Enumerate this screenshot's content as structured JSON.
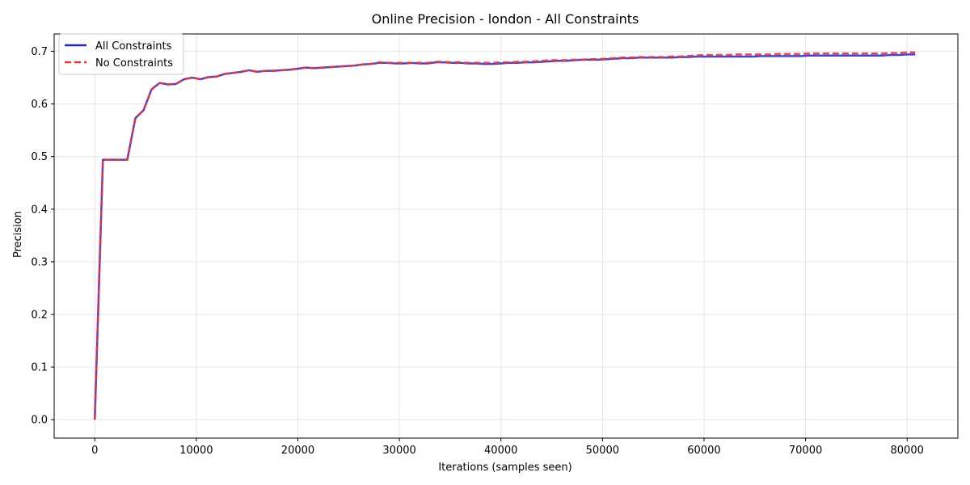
{
  "chart_data": {
    "type": "line",
    "title": "Online Precision - london - All Constraints",
    "xlabel": "Iterations (samples seen)",
    "ylabel": "Precision",
    "xlim": [
      -4000,
      85000
    ],
    "ylim": [
      -0.035,
      0.733
    ],
    "xticks": [
      0,
      10000,
      20000,
      30000,
      40000,
      50000,
      60000,
      70000,
      80000
    ],
    "yticks": [
      0.0,
      0.1,
      0.2,
      0.3,
      0.4,
      0.5,
      0.6,
      0.7
    ],
    "grid": true,
    "legend_position": "top-left",
    "series": [
      {
        "name": "All Constraints",
        "color": "#2222dd",
        "style": "solid",
        "x": [
          0,
          800,
          1600,
          2400,
          3200,
          4000,
          4800,
          5600,
          6400,
          7200,
          8000,
          8800,
          9600,
          10400,
          11200,
          12000,
          12800,
          13600,
          14400,
          15200,
          16000,
          16800,
          17600,
          18400,
          19200,
          20000,
          20800,
          21600,
          22400,
          23200,
          24000,
          24800,
          25600,
          26400,
          27200,
          28000,
          28800,
          29600,
          30400,
          31200,
          32000,
          32800,
          33600,
          34400,
          35200,
          36000,
          36800,
          37600,
          38400,
          39200,
          40000,
          40800,
          41600,
          42400,
          43200,
          44000,
          44800,
          45600,
          46400,
          47200,
          48000,
          48800,
          49600,
          50400,
          51200,
          52000,
          52800,
          53600,
          54400,
          55200,
          56000,
          56800,
          57600,
          58400,
          59200,
          60000,
          60800,
          61600,
          62400,
          63200,
          64000,
          64800,
          65600,
          66400,
          67200,
          68000,
          68800,
          69600,
          70400,
          71200,
          72000,
          72800,
          73600,
          74400,
          75200,
          76000,
          76800,
          77600,
          78400,
          79200,
          80000,
          80800
        ],
        "values": [
          0.0,
          0.494,
          0.494,
          0.494,
          0.494,
          0.573,
          0.588,
          0.628,
          0.64,
          0.637,
          0.638,
          0.647,
          0.65,
          0.647,
          0.651,
          0.652,
          0.657,
          0.659,
          0.661,
          0.664,
          0.661,
          0.663,
          0.663,
          0.664,
          0.665,
          0.667,
          0.669,
          0.668,
          0.669,
          0.67,
          0.671,
          0.672,
          0.673,
          0.675,
          0.676,
          0.678,
          0.678,
          0.677,
          0.677,
          0.678,
          0.677,
          0.677,
          0.679,
          0.679,
          0.678,
          0.678,
          0.677,
          0.677,
          0.676,
          0.676,
          0.677,
          0.678,
          0.678,
          0.679,
          0.679,
          0.68,
          0.681,
          0.682,
          0.682,
          0.683,
          0.684,
          0.684,
          0.684,
          0.685,
          0.686,
          0.687,
          0.687,
          0.688,
          0.688,
          0.688,
          0.688,
          0.688,
          0.689,
          0.689,
          0.69,
          0.69,
          0.69,
          0.69,
          0.69,
          0.69,
          0.69,
          0.69,
          0.691,
          0.691,
          0.691,
          0.691,
          0.691,
          0.691,
          0.692,
          0.692,
          0.692,
          0.692,
          0.692,
          0.692,
          0.692,
          0.692,
          0.692,
          0.692,
          0.693,
          0.693,
          0.694,
          0.694
        ]
      },
      {
        "name": "No Constraints",
        "color": "#ee3333",
        "style": "dashed",
        "x": [
          0,
          800,
          1600,
          2400,
          3200,
          4000,
          4800,
          5600,
          6400,
          7200,
          8000,
          8800,
          9600,
          10400,
          11200,
          12000,
          12800,
          13600,
          14400,
          15200,
          16000,
          16800,
          17600,
          18400,
          19200,
          20000,
          20800,
          21600,
          22400,
          23200,
          24000,
          24800,
          25600,
          26400,
          27200,
          28000,
          28800,
          29600,
          30400,
          31200,
          32000,
          32800,
          33600,
          34400,
          35200,
          36000,
          36800,
          37600,
          38400,
          39200,
          40000,
          40800,
          41600,
          42400,
          43200,
          44000,
          44800,
          45600,
          46400,
          47200,
          48000,
          48800,
          49600,
          50400,
          51200,
          52000,
          52800,
          53600,
          54400,
          55200,
          56000,
          56800,
          57600,
          58400,
          59200,
          60000,
          60800,
          61600,
          62400,
          63200,
          64000,
          64800,
          65600,
          66400,
          67200,
          68000,
          68800,
          69600,
          70400,
          71200,
          72000,
          72800,
          73600,
          74400,
          75200,
          76000,
          76800,
          77600,
          78400,
          79200,
          80000,
          80800
        ],
        "values": [
          0.0,
          0.494,
          0.494,
          0.494,
          0.494,
          0.573,
          0.588,
          0.628,
          0.64,
          0.637,
          0.638,
          0.647,
          0.65,
          0.647,
          0.651,
          0.652,
          0.657,
          0.659,
          0.661,
          0.664,
          0.661,
          0.663,
          0.663,
          0.664,
          0.665,
          0.667,
          0.669,
          0.668,
          0.669,
          0.67,
          0.671,
          0.672,
          0.673,
          0.675,
          0.676,
          0.679,
          0.678,
          0.678,
          0.678,
          0.678,
          0.678,
          0.678,
          0.68,
          0.68,
          0.679,
          0.679,
          0.678,
          0.678,
          0.678,
          0.678,
          0.679,
          0.679,
          0.68,
          0.68,
          0.681,
          0.682,
          0.683,
          0.683,
          0.683,
          0.684,
          0.684,
          0.685,
          0.685,
          0.686,
          0.687,
          0.688,
          0.688,
          0.689,
          0.689,
          0.689,
          0.689,
          0.69,
          0.69,
          0.691,
          0.692,
          0.693,
          0.693,
          0.693,
          0.693,
          0.694,
          0.694,
          0.694,
          0.694,
          0.694,
          0.695,
          0.695,
          0.695,
          0.695,
          0.696,
          0.696,
          0.696,
          0.696,
          0.696,
          0.696,
          0.696,
          0.696,
          0.696,
          0.696,
          0.697,
          0.697,
          0.698,
          0.698
        ]
      }
    ]
  }
}
